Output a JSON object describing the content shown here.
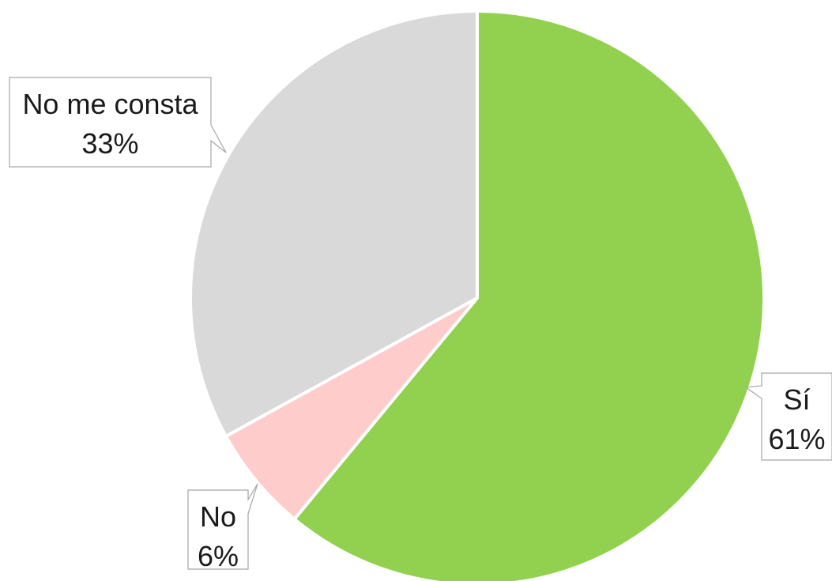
{
  "chart_data": {
    "type": "pie",
    "title": "",
    "slices": [
      {
        "label": "Sí",
        "value": 61,
        "value_label": "61%",
        "color": "#92d050"
      },
      {
        "label": "No",
        "value": 6,
        "value_label": "6%",
        "color": "#ffcccc"
      },
      {
        "label": "No me consta",
        "value": 33,
        "value_label": "33%",
        "color": "#d9d9d9"
      }
    ],
    "start_angle": "12 o'clock",
    "direction": "clockwise",
    "slice_border_color": "#ffffff",
    "callout_border_color": "#a6a6a6",
    "data_labels": "callouts"
  }
}
